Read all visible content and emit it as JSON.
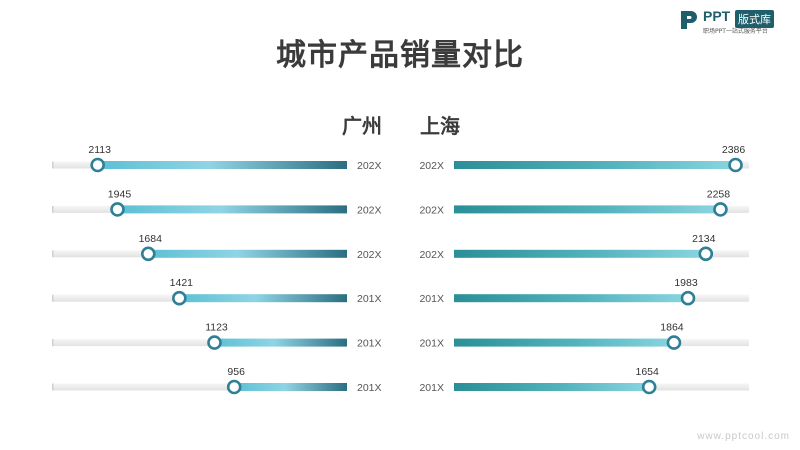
{
  "title": "城市产品销量对比",
  "logo": {
    "brand": "PPT",
    "badge": "版式库",
    "subtitle": "职场PPT一站式服务平台"
  },
  "watermark": "www.pptcool.com",
  "colors": {
    "left_bar_start": "#5cc0d4",
    "left_bar_mid": "#8fd4e4",
    "left_bar_end": "#2b6e82",
    "right_bar_start": "#2a8f96",
    "right_bar_mid": "#52b3bd",
    "right_bar_end": "#8ad5e0",
    "track": "#ededed",
    "marker_ring": "#2f7f96"
  },
  "chart_data": {
    "type": "bar",
    "title": "城市产品销量对比",
    "categories": [
      "202X",
      "202X",
      "202X",
      "201X",
      "201X",
      "201X"
    ],
    "series": [
      {
        "name": "广州",
        "values": [
          2113,
          1945,
          1684,
          1421,
          1123,
          956
        ],
        "direction": "right-to-left"
      },
      {
        "name": "上海",
        "values": [
          2386,
          2258,
          2134,
          1983,
          1864,
          1654
        ],
        "direction": "left-to-right"
      }
    ],
    "xlim": [
      0,
      2500
    ],
    "grid": false,
    "legend": "none"
  }
}
